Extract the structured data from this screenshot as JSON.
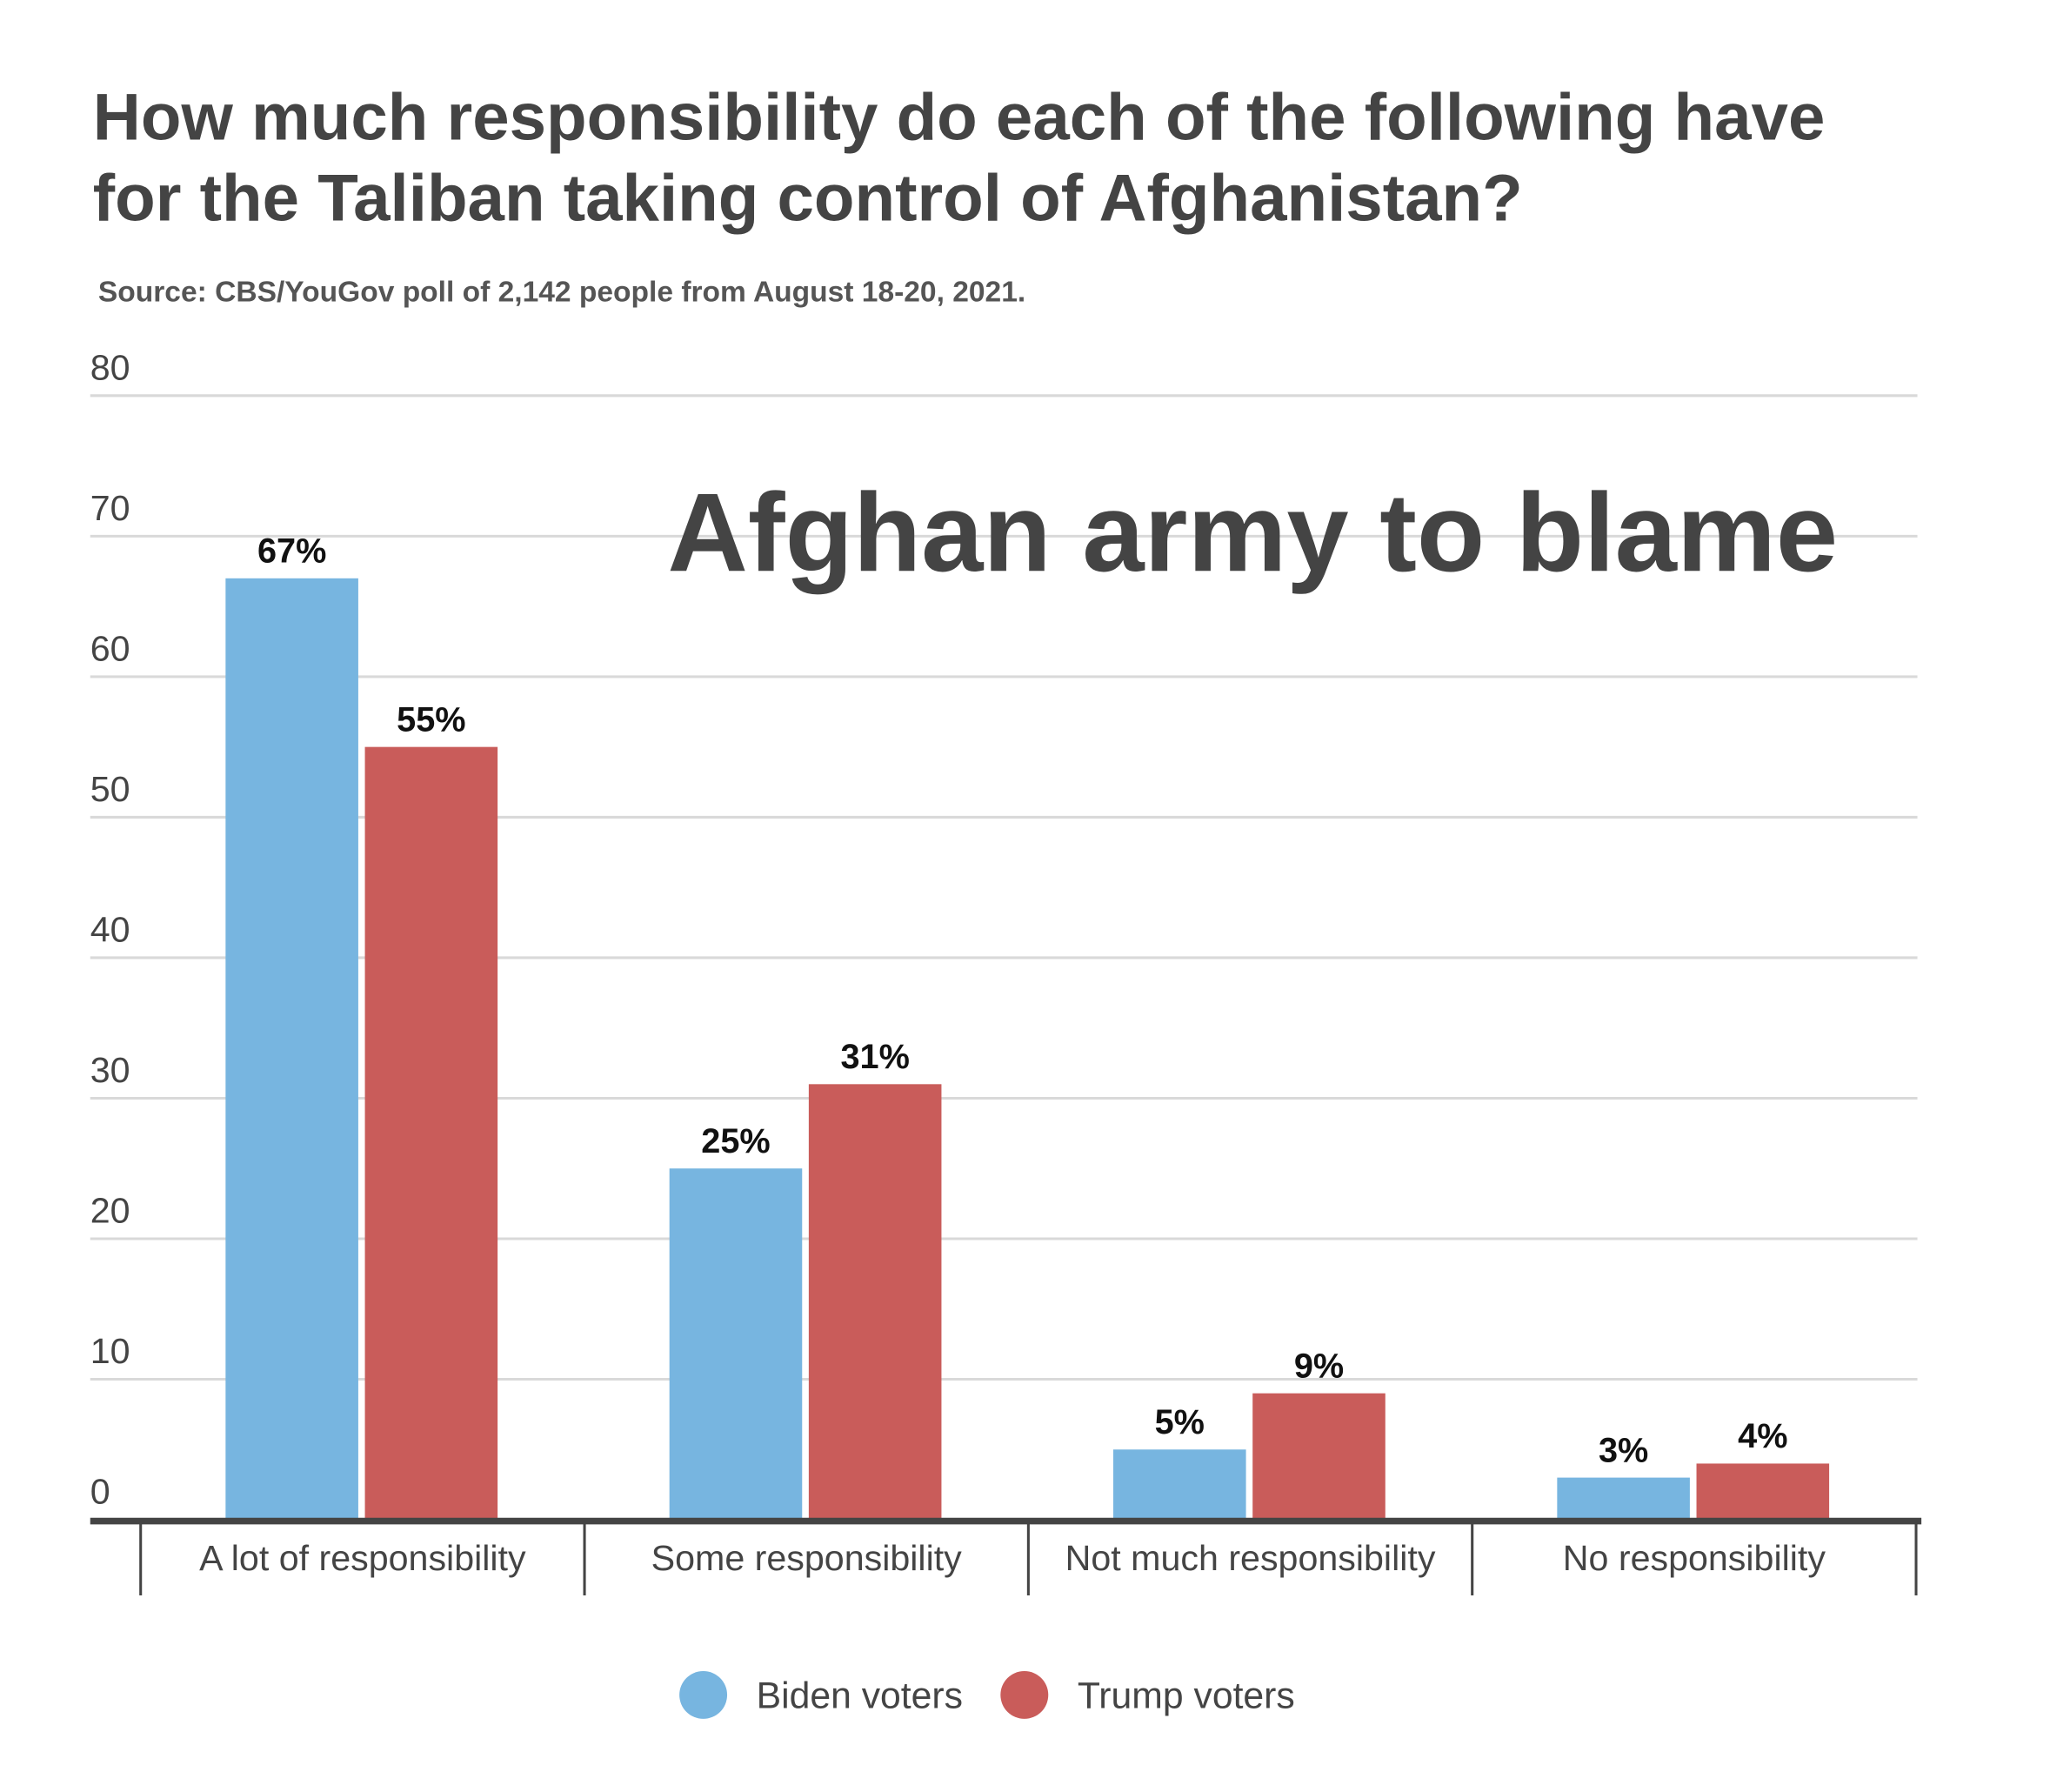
{
  "chart_data": {
    "type": "bar",
    "title_lines": [
      "How much responsibility do each of the following have",
      "for the Taliban taking control of Afghanistan?"
    ],
    "subtitle": "Source: CBS/YouGov poll of 2,142 people from August 18-20, 2021.",
    "annotation": "Afghan army to blame",
    "categories": [
      "A lot of responsibility",
      "Some responsibility",
      "Not much responsibility",
      "No responsibility"
    ],
    "series": [
      {
        "name": "Biden voters",
        "color": "#77b5e0",
        "values": [
          67,
          25,
          5,
          3
        ],
        "labels": [
          "67%",
          "25%",
          "5%",
          "3%"
        ]
      },
      {
        "name": "Trump voters",
        "color": "#c95c5a",
        "values": [
          55,
          31,
          9,
          4
        ],
        "labels": [
          "55%",
          "31%",
          "9%",
          "4%"
        ]
      }
    ],
    "ylim": [
      0,
      80
    ],
    "yticks": [
      "0",
      "10",
      "20",
      "30",
      "40",
      "50",
      "60",
      "70",
      "80"
    ],
    "xlabel": "",
    "ylabel": "",
    "grid": true,
    "legend_position": "bottom-center"
  }
}
